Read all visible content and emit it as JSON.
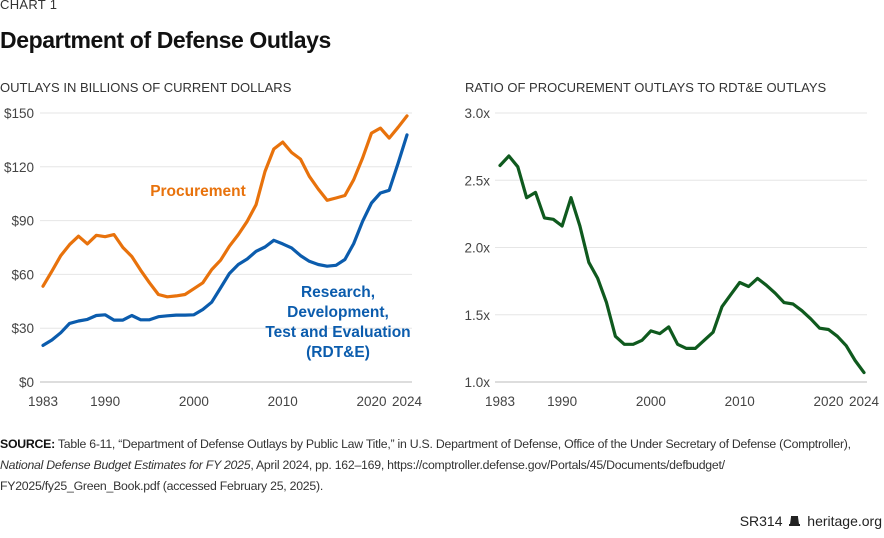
{
  "header": {
    "kicker": "CHART 1",
    "title": "Department of Defense Outlays"
  },
  "chart_data": [
    {
      "type": "line",
      "title": "OUTLAYS IN BILLIONS OF CURRENT DOLLARS",
      "xlabel": "",
      "ylabel": "",
      "x": [
        1983,
        1984,
        1985,
        1986,
        1987,
        1988,
        1989,
        1990,
        1991,
        1992,
        1993,
        1994,
        1995,
        1996,
        1997,
        1998,
        1999,
        2000,
        2001,
        2002,
        2003,
        2004,
        2005,
        2006,
        2007,
        2008,
        2009,
        2010,
        2011,
        2012,
        2013,
        2014,
        2015,
        2016,
        2017,
        2018,
        2019,
        2020,
        2021,
        2022,
        2023,
        2024
      ],
      "xlim": [
        1983,
        2024
      ],
      "ylim": [
        0,
        150
      ],
      "x_ticks": [
        1983,
        1990,
        2000,
        2010,
        2020,
        2024
      ],
      "x_tick_labels": [
        "1983",
        "1990",
        "2000",
        "2010",
        "2020",
        "2024"
      ],
      "y_ticks": [
        0,
        30,
        60,
        90,
        120,
        150
      ],
      "y_tick_labels": [
        "$0",
        "$30",
        "$60",
        "$90",
        "$120",
        "$150"
      ],
      "grid": true,
      "series": [
        {
          "name": "Procurement",
          "label_lines": [
            "Procurement"
          ],
          "color": "#e8720c",
          "values": [
            53.4,
            61.8,
            70.5,
            76.6,
            81.3,
            77,
            81.8,
            81,
            82.2,
            75,
            70,
            62.3,
            55.3,
            48.8,
            47.5,
            48,
            48.8,
            52,
            55.3,
            62.7,
            67.9,
            75.7,
            82.2,
            89.6,
            98.9,
            117.4,
            129.9,
            133.8,
            128,
            124.3,
            114.7,
            107.6,
            101.3,
            102.6,
            104,
            112.8,
            124.9,
            138.8,
            141.6,
            136,
            142,
            148.4
          ]
        },
        {
          "name": "Research, Development, Test and Evaluation (RDT&E)",
          "label_lines": [
            "Research,",
            "Development,",
            "Test and Evaluation",
            "(RDT&E)"
          ],
          "color": "#0b5cad",
          "values": [
            20.4,
            23.4,
            27.5,
            32.7,
            34,
            34.9,
            37.1,
            37.5,
            34.5,
            34.5,
            37.1,
            34.7,
            34.7,
            36.4,
            36.9,
            37.3,
            37.3,
            37.5,
            40.4,
            44.5,
            52.5,
            60.5,
            65.5,
            68.6,
            72.9,
            75.3,
            79,
            77,
            74.8,
            70.5,
            67.3,
            65.5,
            64.6,
            65.1,
            68.3,
            77.2,
            89.6,
            99.8,
            105.4,
            106.9,
            122,
            137.8
          ]
        }
      ]
    },
    {
      "type": "line",
      "title": "RATIO OF PROCUREMENT OUTLAYS TO RDT&E OUTLAYS",
      "xlabel": "",
      "ylabel": "",
      "x": [
        1983,
        1984,
        1985,
        1986,
        1987,
        1988,
        1989,
        1990,
        1991,
        1992,
        1993,
        1994,
        1995,
        1996,
        1997,
        1998,
        1999,
        2000,
        2001,
        2002,
        2003,
        2004,
        2005,
        2006,
        2007,
        2008,
        2009,
        2010,
        2011,
        2012,
        2013,
        2014,
        2015,
        2016,
        2017,
        2018,
        2019,
        2020,
        2021,
        2022,
        2023,
        2024
      ],
      "xlim": [
        1983,
        2024
      ],
      "ylim": [
        1.0,
        3.0
      ],
      "x_ticks": [
        1983,
        1990,
        2000,
        2010,
        2020,
        2024
      ],
      "x_tick_labels": [
        "1983",
        "1990",
        "2000",
        "2010",
        "2020",
        "2024"
      ],
      "y_ticks": [
        1.0,
        1.5,
        2.0,
        2.5,
        3.0
      ],
      "y_tick_labels": [
        "1.0x",
        "1.5x",
        "2.0x",
        "2.5x",
        "3.0x"
      ],
      "grid": true,
      "series": [
        {
          "name": "Procurement / RDT&E ratio",
          "color": "#0f5a1e",
          "values": [
            2.61,
            2.68,
            2.6,
            2.37,
            2.41,
            2.22,
            2.21,
            2.16,
            2.37,
            2.16,
            1.89,
            1.77,
            1.59,
            1.34,
            1.28,
            1.28,
            1.31,
            1.38,
            1.36,
            1.41,
            1.28,
            1.25,
            1.25,
            1.31,
            1.37,
            1.56,
            1.65,
            1.74,
            1.71,
            1.77,
            1.72,
            1.66,
            1.59,
            1.58,
            1.53,
            1.47,
            1.4,
            1.39,
            1.34,
            1.27,
            1.16,
            1.07
          ]
        }
      ]
    }
  ],
  "source": {
    "label": "SOURCE:",
    "text_before": " Table 6-11, “Department of Defense Outlays by Public Law Title,” in U.S. Department of Defense, Office of the Under Secretary of Defense (Comptroller), ",
    "italic": "National Defense Budget Estimates for FY 2025",
    "text_after": ", April 2024, pp. 162–169, https://comptroller.defense.gov/Portals/45/Documents/defbudget/ FY2025/fy25_Green_Book.pdf (accessed February 25, 2025)."
  },
  "footer": {
    "report_id": "SR314",
    "site": "heritage.org"
  }
}
